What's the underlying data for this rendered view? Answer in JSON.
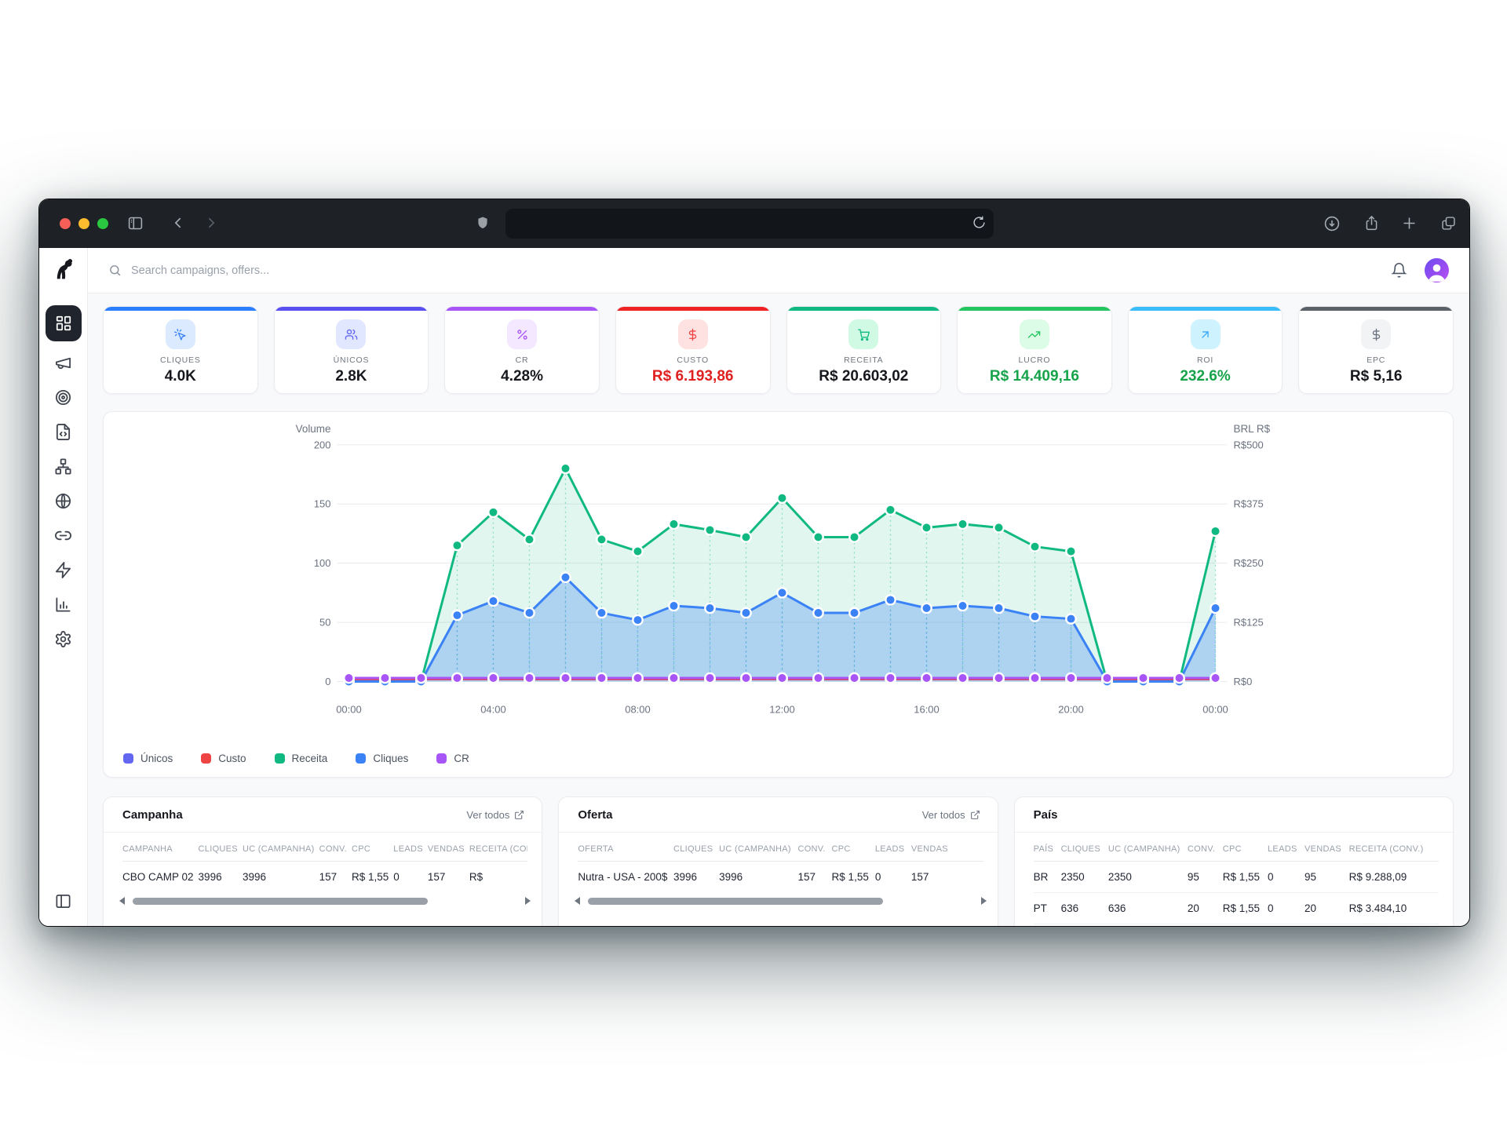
{
  "browser": {
    "traffic_lights": [
      "close",
      "minimize",
      "zoom"
    ],
    "toolbar_icons": [
      "sidebar-toggle",
      "back",
      "forward",
      "shield",
      "reload",
      "download",
      "share",
      "new-tab",
      "tab-overview"
    ]
  },
  "topbar": {
    "search_placeholder": "Search campaigns, offers..."
  },
  "sidebar": {
    "items": [
      {
        "id": "dashboard",
        "icon": "grid",
        "active": true
      },
      {
        "id": "campaigns",
        "icon": "megaphone",
        "active": false
      },
      {
        "id": "offers",
        "icon": "target",
        "active": false
      },
      {
        "id": "landers",
        "icon": "file-code",
        "active": false
      },
      {
        "id": "flows",
        "icon": "network",
        "active": false
      },
      {
        "id": "domains",
        "icon": "globe",
        "active": false
      },
      {
        "id": "links",
        "icon": "link",
        "active": false
      },
      {
        "id": "automation",
        "icon": "zap",
        "active": false
      },
      {
        "id": "reports",
        "icon": "bar-chart",
        "active": false
      },
      {
        "id": "settings",
        "icon": "settings",
        "active": false
      }
    ]
  },
  "kpis": [
    {
      "id": "cliques",
      "label": "CLIQUES",
      "value": "4.0K",
      "accent": "#2b7fff",
      "tile": "#dbeafe",
      "icon_color": "#3b82f6",
      "value_color": "#16181d",
      "icon": "cursor-click-icon"
    },
    {
      "id": "unicos",
      "label": "ÚNICOS",
      "value": "2.8K",
      "accent": "#5a4ff0",
      "tile": "#e0e7ff",
      "icon_color": "#6366f1",
      "value_color": "#16181d",
      "icon": "users-icon"
    },
    {
      "id": "cr",
      "label": "CR",
      "value": "4.28%",
      "accent": "#a855f7",
      "tile": "#f3e8ff",
      "icon_color": "#a855f7",
      "value_color": "#16181d",
      "icon": "percent-icon"
    },
    {
      "id": "custo",
      "label": "CUSTO",
      "value": "R$ 6.193,86",
      "accent": "#ee2323",
      "tile": "#fee2e2",
      "icon_color": "#ef4444",
      "value_color": "#e02020",
      "icon": "dollar-icon"
    },
    {
      "id": "receita",
      "label": "RECEITA",
      "value": "R$ 20.603,02",
      "accent": "#10b981",
      "tile": "#d1fae5",
      "icon_color": "#10b981",
      "value_color": "#16181d",
      "icon": "cart-icon"
    },
    {
      "id": "lucro",
      "label": "LUCRO",
      "value": "R$ 14.409,16",
      "accent": "#22c55e",
      "tile": "#dcfce7",
      "icon_color": "#22c55e",
      "value_color": "#16a34a",
      "icon": "trending-up-icon"
    },
    {
      "id": "roi",
      "label": "ROI",
      "value": "232.6%",
      "accent": "#38bdf8",
      "tile": "#cff3fe",
      "icon_color": "#38a8f8",
      "value_color": "#16a34a",
      "icon": "arrow-up-right-icon"
    },
    {
      "id": "epc",
      "label": "EPC",
      "value": "R$ 5,16",
      "accent": "#5b6169",
      "tile": "#f2f3f5",
      "icon_color": "#6b7280",
      "value_color": "#16181d",
      "icon": "dollar-icon"
    }
  ],
  "chart_data": {
    "type": "line",
    "x_ticks": [
      "00:00",
      "04:00",
      "08:00",
      "12:00",
      "16:00",
      "20:00",
      "00:00"
    ],
    "y_left": {
      "title": "Volume",
      "ticks": [
        "200",
        "150",
        "100",
        "50",
        "0"
      ],
      "max": 200
    },
    "y_right": {
      "title": "BRL R$",
      "ticks": [
        "R$500",
        "R$375",
        "R$250",
        "R$125",
        "R$0"
      ]
    },
    "series": [
      {
        "name": "Únicos",
        "color": "#6366f1",
        "fill": "none",
        "values": [
          2,
          2,
          2,
          2,
          2,
          2,
          2,
          2,
          2,
          2,
          2,
          2,
          2,
          2,
          2,
          2,
          2,
          2,
          2,
          2,
          2,
          2,
          2,
          2,
          2
        ]
      },
      {
        "name": "Custo",
        "color": "#ef4444",
        "fill": "none",
        "values": [
          2,
          2,
          2,
          2,
          2,
          2,
          2,
          2,
          2,
          2,
          2,
          2,
          2,
          2,
          2,
          2,
          2,
          2,
          2,
          2,
          2,
          2,
          2,
          2,
          2
        ]
      },
      {
        "name": "Receita",
        "color": "#10b981",
        "fill": "rgba(16,185,129,0.13)",
        "values": [
          0,
          0,
          0,
          115,
          143,
          120,
          180,
          120,
          110,
          133,
          128,
          122,
          155,
          122,
          122,
          145,
          130,
          133,
          130,
          114,
          110,
          0,
          0,
          0,
          127
        ]
      },
      {
        "name": "Cliques",
        "color": "#3b82f6",
        "fill": "rgba(59,130,246,0.30)",
        "values": [
          0,
          0,
          0,
          56,
          68,
          58,
          88,
          58,
          52,
          64,
          62,
          58,
          75,
          58,
          58,
          69,
          62,
          64,
          62,
          55,
          53,
          0,
          0,
          0,
          62
        ]
      },
      {
        "name": "CR",
        "color": "#a855f7",
        "fill": "none",
        "values": [
          3,
          3,
          3,
          3,
          3,
          3,
          3,
          3,
          3,
          3,
          3,
          3,
          3,
          3,
          3,
          3,
          3,
          3,
          3,
          3,
          3,
          3,
          3,
          3,
          3
        ]
      }
    ]
  },
  "tables": {
    "campanha": {
      "title": "Campanha",
      "link_label": "Ver todos",
      "headers": [
        "CAMPANHA",
        "CLIQUES",
        "UC (CAMPANHA)",
        "CONV.",
        "CPC",
        "LEADS",
        "VENDAS",
        "RECEITA (CONV.)"
      ],
      "rows": [
        [
          "CBO CAMP 02",
          "3996",
          "3996",
          "157",
          "R$ 1,55",
          "0",
          "157",
          "R$"
        ]
      ]
    },
    "oferta": {
      "title": "Oferta",
      "link_label": "Ver todos",
      "headers": [
        "OFERTA",
        "CLIQUES",
        "UC (CAMPANHA)",
        "CONV.",
        "CPC",
        "LEADS",
        "VENDAS"
      ],
      "rows": [
        [
          "Nutra - USA - 200$",
          "3996",
          "3996",
          "157",
          "R$ 1,55",
          "0",
          "157"
        ]
      ]
    },
    "pais": {
      "title": "País",
      "headers": [
        "PAÍS",
        "CLIQUES",
        "UC (CAMPANHA)",
        "CONV.",
        "CPC",
        "LEADS",
        "VENDAS",
        "RECEITA (CONV.)"
      ],
      "rows": [
        [
          "BR",
          "2350",
          "2350",
          "95",
          "R$ 1,55",
          "0",
          "95",
          "R$ 9.288,09"
        ],
        [
          "PT",
          "636",
          "636",
          "20",
          "R$ 1,55",
          "0",
          "20",
          "R$ 3.484,10"
        ]
      ]
    }
  }
}
